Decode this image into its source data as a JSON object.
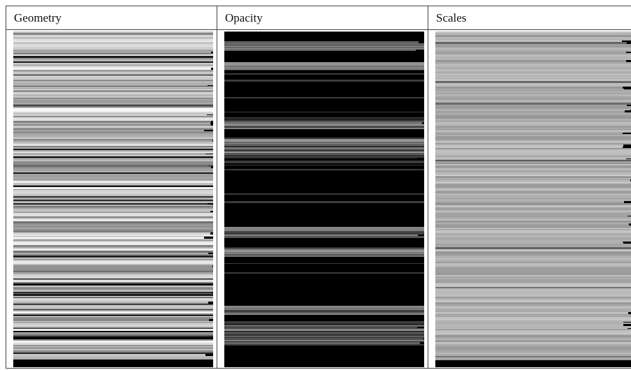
{
  "table": {
    "headers": [
      "Geometry",
      "Opacity",
      "Scales"
    ]
  }
}
